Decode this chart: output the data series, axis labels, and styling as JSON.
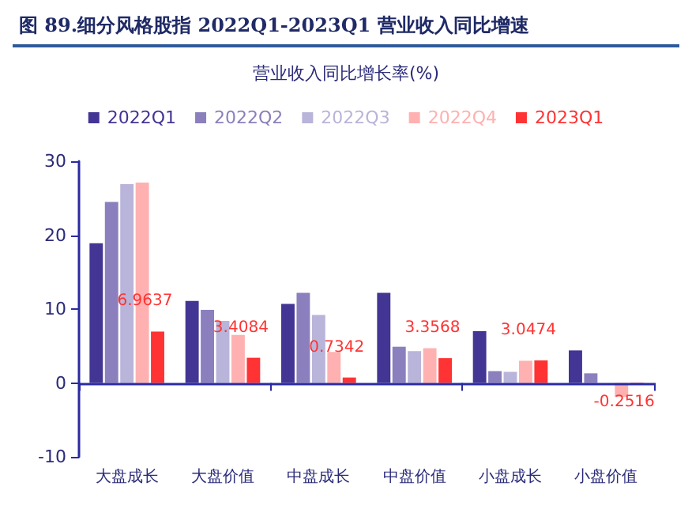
{
  "chart_data": {
    "type": "bar",
    "title": "图  89.细分风格股指 2022Q1-2023Q1 营业收入同比增速",
    "subtitle": "营业收入同比增长率(%)",
    "categories": [
      "大盘成长",
      "大盘价值",
      "中盘成长",
      "中盘价值",
      "小盘成长",
      "小盘价值"
    ],
    "series": [
      {
        "name": "2022Q1",
        "color": "#433594",
        "values": [
          18.9,
          11.1,
          10.7,
          12.2,
          7.0,
          4.4
        ]
      },
      {
        "name": "2022Q2",
        "color": "#8b80bd",
        "values": [
          24.5,
          9.9,
          12.2,
          4.9,
          1.6,
          1.3
        ]
      },
      {
        "name": "2022Q3",
        "color": "#b9b4d9",
        "values": [
          26.9,
          8.4,
          9.2,
          4.3,
          1.5,
          0
        ]
      },
      {
        "name": "2022Q4",
        "color": "#ffb1b1",
        "values": [
          27.1,
          6.5,
          4.2,
          4.7,
          3.0,
          -1.9
        ]
      },
      {
        "name": "2023Q1",
        "color": "#ff3333",
        "values": [
          6.9637,
          3.4084,
          0.7342,
          3.3568,
          3.0474,
          -0.2516
        ],
        "value_labels": [
          "6.9637",
          "3.4084",
          "0.7342",
          "3.3568",
          "3.0474",
          "-0.2516"
        ]
      }
    ],
    "ref_lines": [
      {
        "axis": "y",
        "value": 0,
        "color": "#2a2aa0"
      }
    ],
    "ylim": [
      -10,
      30
    ],
    "yticks": [
      -10,
      0,
      10,
      20,
      30
    ],
    "grid": false,
    "legend": "top"
  }
}
